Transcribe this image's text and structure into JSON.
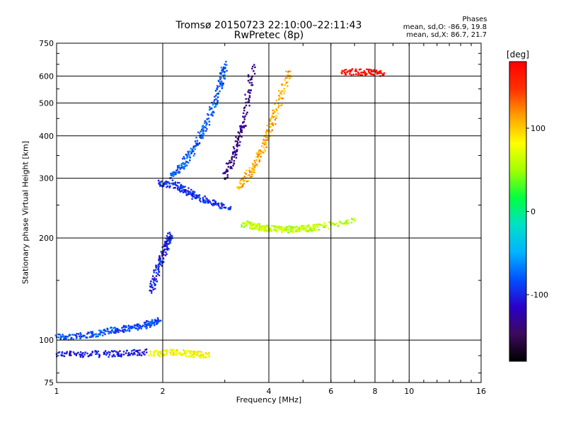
{
  "header": {
    "title_line1": "Tromsø 20150723 22:10:00–22:11:43",
    "title_line2": "RwPretec (8p)"
  },
  "stats": {
    "heading": "Phases",
    "line_O": "mean, sd,O: -86.9, 19.8",
    "line_X": "mean, sd,X:  86.7, 21.7"
  },
  "colorbar": {
    "unit": "[deg]",
    "ticks": [
      "100",
      "0",
      "-100"
    ],
    "tick_values": [
      100,
      0,
      -100
    ],
    "range": [
      -180,
      180
    ]
  },
  "chart_data": {
    "type": "scatter",
    "xlabel": "Frequency [MHz]",
    "ylabel": "Stationary phase Virtual Height [km]",
    "x_scale": "log",
    "y_scale": "log",
    "xlim": [
      1,
      16
    ],
    "ylim": [
      75,
      750
    ],
    "x_ticks": [
      "1",
      "2",
      "4",
      "6",
      "8",
      "10",
      "16"
    ],
    "x_tick_values": [
      1,
      2,
      4,
      6,
      8,
      10,
      16
    ],
    "y_ticks": [
      "750",
      "600",
      "500",
      "400",
      "300",
      "200",
      "100",
      "75"
    ],
    "y_tick_values": [
      750,
      600,
      500,
      400,
      300,
      200,
      100,
      75
    ],
    "grid": true,
    "colormap": [
      "#000000",
      "#3c0a5c",
      "#2a00c8",
      "#0050ff",
      "#00b4ff",
      "#00e0c8",
      "#00ff40",
      "#a0ff00",
      "#ffff00",
      "#ffa000",
      "#ff3000",
      "#ff0000"
    ],
    "series": [
      {
        "x": [
          1.0,
          1.25,
          1.5,
          1.8
        ],
        "y": [
          91,
          91,
          91,
          92
        ],
        "phase": -105
      },
      {
        "x": [
          1.0,
          1.2,
          1.4,
          1.6,
          1.8,
          1.95
        ],
        "y": [
          102,
          103,
          106,
          108,
          111,
          114
        ],
        "phase": -85
      },
      {
        "x": [
          1.85,
          1.95,
          2.05,
          2.1
        ],
        "y": [
          140,
          165,
          190,
          205
        ],
        "phase": -100
      },
      {
        "x": [
          1.95,
          2.2,
          2.4,
          2.7,
          3.1
        ],
        "y": [
          290,
          285,
          270,
          255,
          245
        ],
        "phase": -95
      },
      {
        "x": [
          2.1,
          2.3,
          2.5,
          2.7,
          2.9,
          3.0
        ],
        "y": [
          300,
          330,
          380,
          450,
          560,
          650
        ],
        "phase": -80
      },
      {
        "x": [
          3.0,
          3.2,
          3.4,
          3.6
        ],
        "y": [
          300,
          360,
          440,
          640
        ],
        "phase": -135
      },
      {
        "x": [
          3.4,
          3.7,
          4.0,
          4.5,
          5.0,
          5.5,
          7.0
        ],
        "y": [
          220,
          216,
          213,
          212,
          213,
          215,
          225
        ],
        "phase": 60
      },
      {
        "x": [
          3.3,
          3.6,
          3.9,
          4.2,
          4.6
        ],
        "y": [
          280,
          320,
          380,
          480,
          620
        ],
        "phase": 110
      },
      {
        "x": [
          1.85,
          2.1,
          2.4,
          2.7
        ],
        "y": [
          91,
          92,
          91,
          90
        ],
        "phase": 80
      },
      {
        "x": [
          6.5,
          7.5,
          8.5
        ],
        "y": [
          620,
          615,
          612
        ],
        "phase": 170
      }
    ]
  }
}
